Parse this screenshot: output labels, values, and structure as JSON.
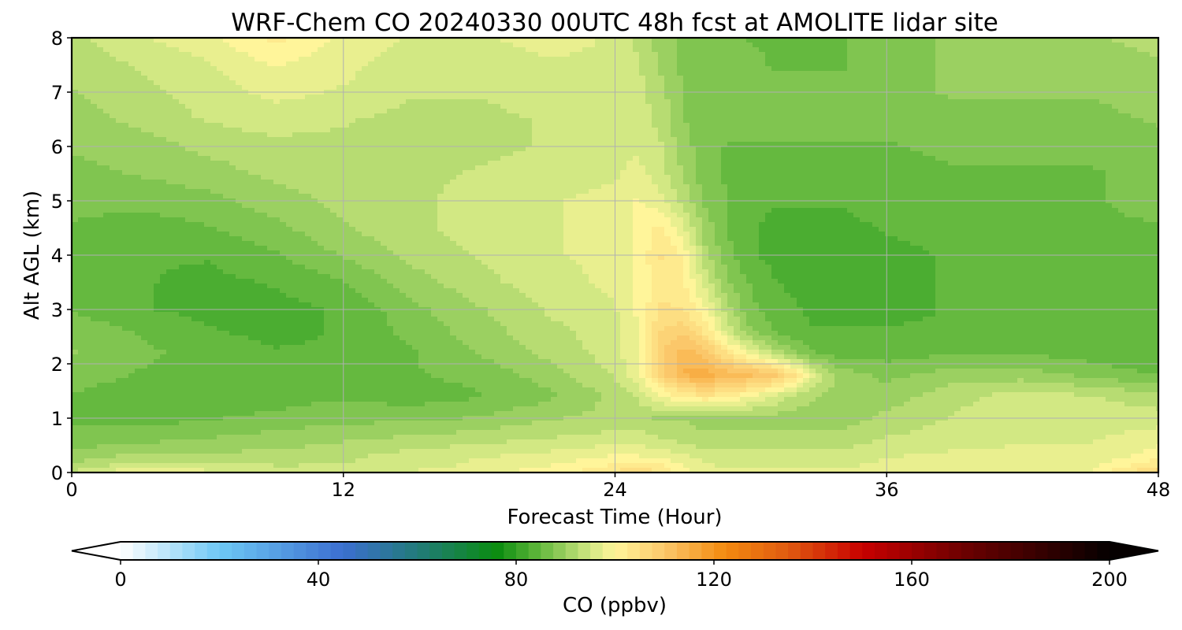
{
  "chart_data": {
    "type": "heatmap",
    "title": "WRF-Chem CO  20240330 00UTC 48h fcst at AMOLITE lidar site",
    "xlabel": "Forecast Time (Hour)",
    "ylabel": "Alt AGL (km)",
    "xlim": [
      0,
      48
    ],
    "ylim": [
      0,
      8
    ],
    "x_ticks": [
      "0",
      "12",
      "24",
      "36",
      "48"
    ],
    "y_ticks": [
      "0",
      "1",
      "2",
      "3",
      "4",
      "5",
      "6",
      "7",
      "8"
    ],
    "grid": true,
    "colorbar": {
      "label": "CO  (ppbv)",
      "ticks": [
        "0",
        "40",
        "80",
        "120",
        "160",
        "200"
      ],
      "range": [
        0,
        200
      ],
      "extend": "both",
      "color_stops": [
        {
          "value": 0,
          "color": "#ffffff"
        },
        {
          "value": 20,
          "color": "#6ec8f5"
        },
        {
          "value": 45,
          "color": "#3b6fd0"
        },
        {
          "value": 62,
          "color": "#1f7d6e"
        },
        {
          "value": 76,
          "color": "#0a8c10"
        },
        {
          "value": 84,
          "color": "#5ab438"
        },
        {
          "value": 95,
          "color": "#d2e883"
        },
        {
          "value": 100,
          "color": "#fff59a"
        },
        {
          "value": 110,
          "color": "#fbc76a"
        },
        {
          "value": 122,
          "color": "#f48b10"
        },
        {
          "value": 135,
          "color": "#e05a10"
        },
        {
          "value": 150,
          "color": "#c80000"
        },
        {
          "value": 170,
          "color": "#6e0000"
        },
        {
          "value": 200,
          "color": "#050000"
        }
      ]
    },
    "x": [
      0,
      3,
      6,
      9,
      12,
      15,
      18,
      21,
      24,
      25,
      26,
      27,
      28,
      29,
      30,
      31,
      32,
      33,
      34,
      36,
      39,
      42,
      45,
      48
    ],
    "y": [
      0,
      0.1,
      0.3,
      0.6,
      1.0,
      1.4,
      1.8,
      2.2,
      2.6,
      3.0,
      3.5,
      4.0,
      4.5,
      5.0,
      5.5,
      6.0,
      6.5,
      7.0,
      7.5,
      8.0
    ],
    "z": [
      [
        94,
        99,
        97,
        96,
        96,
        97,
        98,
        100,
        104,
        106,
        104,
        100,
        98,
        97,
        97,
        97,
        97,
        97,
        97,
        97,
        98,
        99,
        99,
        108
      ],
      [
        92,
        96,
        95,
        94,
        94,
        95,
        97,
        99,
        102,
        104,
        102,
        99,
        97,
        96,
        96,
        96,
        96,
        96,
        96,
        97,
        98,
        98,
        98,
        104
      ],
      [
        90,
        92,
        92,
        92,
        93,
        95,
        96,
        97,
        99,
        99,
        98,
        97,
        95,
        95,
        95,
        95,
        95,
        95,
        95,
        96,
        97,
        97,
        97,
        100
      ],
      [
        87,
        88,
        89,
        90,
        91,
        92,
        93,
        94,
        95,
        95,
        94,
        93,
        92,
        92,
        92,
        92,
        92,
        92,
        92,
        94,
        95,
        96,
        96,
        98
      ],
      [
        86,
        85,
        86,
        87,
        88,
        88,
        89,
        91,
        92,
        92,
        91,
        91,
        90,
        90,
        90,
        90,
        90,
        90,
        90,
        92,
        94,
        95,
        95,
        95
      ],
      [
        86,
        84,
        84,
        85,
        86,
        85,
        86,
        88,
        92,
        94,
        98,
        102,
        103,
        102,
        99,
        96,
        93,
        91,
        90,
        90,
        93,
        95,
        94,
        92
      ],
      [
        88,
        86,
        85,
        85,
        85,
        86,
        87,
        90,
        94,
        98,
        107,
        114,
        115,
        113,
        112,
        110,
        104,
        95,
        90,
        88,
        90,
        90,
        88,
        86
      ],
      [
        89,
        87,
        85,
        84,
        84,
        86,
        89,
        92,
        95,
        99,
        108,
        113,
        110,
        103,
        98,
        93,
        89,
        86,
        85,
        85,
        86,
        86,
        85,
        84
      ],
      [
        88,
        86,
        84,
        83,
        84,
        87,
        90,
        93,
        95,
        99,
        106,
        108,
        103,
        95,
        89,
        86,
        84,
        84,
        84,
        84,
        84,
        84,
        84,
        84
      ],
      [
        86,
        84,
        83,
        83,
        84,
        88,
        91,
        94,
        96,
        99,
        104,
        104,
        99,
        92,
        87,
        85,
        84,
        83,
        83,
        83,
        84,
        84,
        84,
        84
      ],
      [
        85,
        84,
        83,
        84,
        86,
        90,
        93,
        95,
        97,
        99,
        103,
        102,
        95,
        89,
        86,
        84,
        83,
        82,
        82,
        83,
        84,
        85,
        85,
        85
      ],
      [
        85,
        84,
        84,
        86,
        89,
        92,
        94,
        96,
        97,
        99,
        104,
        101,
        92,
        87,
        84,
        83,
        82,
        82,
        82,
        83,
        84,
        85,
        85,
        85
      ],
      [
        86,
        85,
        86,
        88,
        91,
        93,
        95,
        96,
        97,
        99,
        102,
        97,
        90,
        86,
        84,
        83,
        83,
        83,
        83,
        84,
        85,
        85,
        86,
        86
      ],
      [
        87,
        87,
        88,
        90,
        92,
        93,
        95,
        96,
        97,
        99,
        97,
        93,
        88,
        86,
        85,
        84,
        84,
        84,
        84,
        85,
        85,
        86,
        86,
        87
      ],
      [
        88,
        89,
        90,
        92,
        93,
        93,
        94,
        95,
        96,
        97,
        95,
        91,
        87,
        86,
        85,
        85,
        85,
        85,
        85,
        85,
        86,
        86,
        86,
        87
      ],
      [
        89,
        90,
        92,
        93,
        93,
        93,
        93,
        94,
        95,
        96,
        94,
        90,
        87,
        86,
        86,
        86,
        86,
        86,
        86,
        86,
        87,
        87,
        87,
        88
      ],
      [
        90,
        92,
        94,
        95,
        94,
        93,
        93,
        94,
        95,
        95,
        93,
        89,
        87,
        87,
        87,
        87,
        87,
        87,
        87,
        87,
        88,
        88,
        88,
        89
      ],
      [
        91,
        93,
        95,
        97,
        96,
        94,
        94,
        95,
        96,
        95,
        92,
        89,
        87,
        87,
        87,
        87,
        87,
        87,
        87,
        88,
        89,
        89,
        89,
        90
      ],
      [
        92,
        94,
        96,
        99,
        97,
        95,
        95,
        96,
        96,
        94,
        91,
        88,
        87,
        87,
        87,
        86,
        86,
        86,
        86,
        88,
        89,
        90,
        90,
        91
      ],
      [
        93,
        96,
        98,
        102,
        98,
        96,
        96,
        97,
        96,
        93,
        90,
        88,
        87,
        87,
        86,
        86,
        86,
        86,
        86,
        88,
        89,
        90,
        91,
        92
      ]
    ]
  }
}
